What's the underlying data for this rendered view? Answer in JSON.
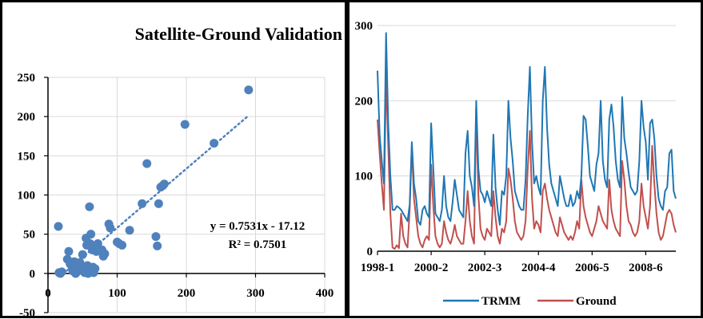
{
  "colors": {
    "point": "#4F81BD",
    "trmm": "#1F77B4",
    "ground": "#C0504D",
    "grid": "#D9D9D9",
    "trendline": "#4F81BD"
  },
  "chart_data": [
    {
      "type": "scatter",
      "title": "Satellite-Ground Validation",
      "xlabel": "",
      "ylabel": "",
      "xlim": [
        0,
        400
      ],
      "ylim": [
        -50,
        250
      ],
      "xticks": [
        "0",
        "100",
        "200",
        "300",
        "400"
      ],
      "yticks": [
        "-50",
        "0",
        "50",
        "100",
        "150",
        "200",
        "250"
      ],
      "grid": true,
      "trendline": {
        "slope": 0.7531,
        "intercept": -17.12,
        "x_range": [
          22,
          290
        ],
        "style": "dotted"
      },
      "equation_label": "y = 0.7531x - 17.12",
      "r2_label": "R² = 0.7501",
      "points": [
        [
          15,
          60
        ],
        [
          16,
          1
        ],
        [
          18,
          0
        ],
        [
          20,
          2
        ],
        [
          28,
          18
        ],
        [
          30,
          28
        ],
        [
          32,
          12
        ],
        [
          35,
          8
        ],
        [
          36,
          3
        ],
        [
          38,
          15
        ],
        [
          40,
          0
        ],
        [
          42,
          2
        ],
        [
          44,
          5
        ],
        [
          46,
          14
        ],
        [
          48,
          8
        ],
        [
          50,
          24
        ],
        [
          52,
          3
        ],
        [
          53,
          1
        ],
        [
          55,
          45
        ],
        [
          56,
          36
        ],
        [
          57,
          10
        ],
        [
          58,
          0
        ],
        [
          59,
          5
        ],
        [
          60,
          85
        ],
        [
          61,
          38
        ],
        [
          62,
          50
        ],
        [
          63,
          2
        ],
        [
          64,
          30
        ],
        [
          65,
          8
        ],
        [
          66,
          1
        ],
        [
          67,
          34
        ],
        [
          68,
          6
        ],
        [
          70,
          28
        ],
        [
          72,
          38
        ],
        [
          74,
          30
        ],
        [
          78,
          30
        ],
        [
          80,
          22
        ],
        [
          82,
          25
        ],
        [
          88,
          63
        ],
        [
          90,
          58
        ],
        [
          100,
          40
        ],
        [
          103,
          38
        ],
        [
          107,
          36
        ],
        [
          118,
          55
        ],
        [
          136,
          89
        ],
        [
          143,
          140
        ],
        [
          156,
          47
        ],
        [
          158,
          35
        ],
        [
          160,
          89
        ],
        [
          163,
          110
        ],
        [
          166,
          112
        ],
        [
          168,
          114
        ],
        [
          198,
          190
        ],
        [
          240,
          166
        ],
        [
          290,
          234
        ]
      ]
    },
    {
      "type": "line",
      "xlabel": "",
      "ylabel": "",
      "ylim": [
        0,
        300
      ],
      "yticks": [
        "0",
        "100",
        "200",
        "300"
      ],
      "xticks": [
        "1998-1",
        "2000-2",
        "2002-3",
        "2004-4",
        "2006-5",
        "2008-6"
      ],
      "xtick_index": [
        0,
        25,
        50,
        75,
        100,
        125
      ],
      "grid": true,
      "legend": "bottom",
      "series": [
        {
          "name": "TRMM",
          "values": [
            240,
            155,
            120,
            90,
            290,
            170,
            100,
            55,
            55,
            60,
            58,
            55,
            50,
            45,
            40,
            62,
            145,
            90,
            70,
            40,
            35,
            55,
            60,
            50,
            45,
            170,
            110,
            50,
            45,
            40,
            55,
            100,
            60,
            45,
            40,
            65,
            95,
            75,
            55,
            50,
            45,
            130,
            160,
            100,
            85,
            60,
            200,
            110,
            80,
            75,
            65,
            80,
            70,
            60,
            155,
            85,
            55,
            35,
            80,
            75,
            100,
            200,
            150,
            120,
            80,
            70,
            60,
            55,
            55,
            95,
            180,
            245,
            145,
            90,
            100,
            85,
            75,
            200,
            245,
            165,
            115,
            90,
            80,
            70,
            60,
            100,
            85,
            70,
            60,
            60,
            75,
            60,
            65,
            80,
            70,
            100,
            180,
            175,
            140,
            100,
            90,
            80,
            115,
            130,
            200,
            120,
            95,
            85,
            175,
            195,
            165,
            120,
            95,
            85,
            205,
            150,
            130,
            105,
            85,
            80,
            75,
            80,
            120,
            200,
            165,
            145,
            95,
            170,
            175,
            150,
            100,
            70,
            60,
            55,
            80,
            85,
            130,
            135,
            80,
            70
          ]
        },
        {
          "name": "Ground",
          "values": [
            175,
            130,
            90,
            55,
            235,
            140,
            50,
            5,
            3,
            8,
            4,
            50,
            20,
            10,
            5,
            55,
            140,
            70,
            45,
            20,
            10,
            5,
            15,
            20,
            15,
            115,
            60,
            20,
            10,
            5,
            10,
            40,
            25,
            15,
            10,
            20,
            35,
            20,
            15,
            10,
            10,
            40,
            80,
            40,
            20,
            10,
            190,
            75,
            30,
            20,
            15,
            30,
            25,
            20,
            80,
            45,
            20,
            10,
            30,
            25,
            40,
            110,
            95,
            70,
            40,
            25,
            20,
            15,
            20,
            40,
            110,
            160,
            70,
            30,
            40,
            35,
            25,
            80,
            90,
            70,
            55,
            45,
            35,
            25,
            20,
            45,
            35,
            25,
            20,
            15,
            20,
            15,
            25,
            40,
            30,
            95,
            60,
            45,
            35,
            25,
            20,
            30,
            40,
            60,
            50,
            40,
            35,
            30,
            95,
            55,
            40,
            30,
            25,
            20,
            120,
            95,
            60,
            40,
            35,
            25,
            20,
            25,
            40,
            90,
            60,
            45,
            30,
            60,
            140,
            90,
            50,
            25,
            15,
            20,
            35,
            50,
            55,
            50,
            35,
            25
          ]
        }
      ]
    }
  ]
}
